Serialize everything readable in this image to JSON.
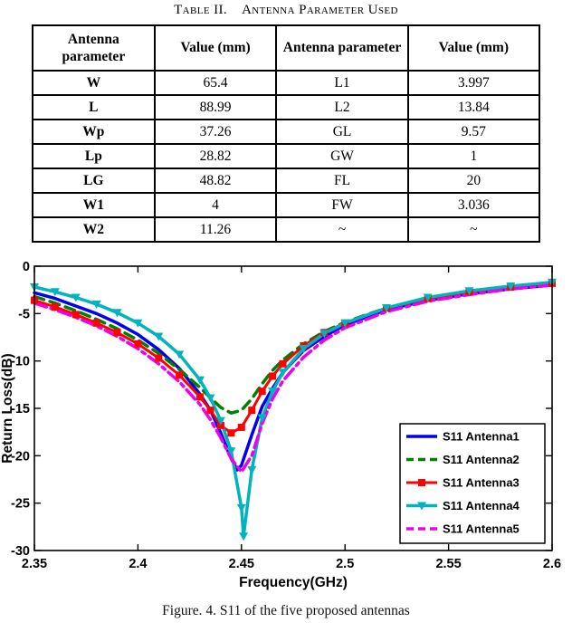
{
  "table": {
    "title_prefix": "Table II.",
    "title_text": "Antenna Parameter Used",
    "headers": [
      "Antenna parameter",
      "Value (mm)",
      "Antenna parameter",
      "Value (mm)"
    ],
    "rows": [
      [
        "W",
        "65.4",
        "L1",
        "3.997"
      ],
      [
        "L",
        "88.99",
        "L2",
        "13.84"
      ],
      [
        "Wp",
        "37.26",
        "GL",
        "9.57"
      ],
      [
        "Lp",
        "28.82",
        "GW",
        "1"
      ],
      [
        "LG",
        "48.82",
        "FL",
        "20"
      ],
      [
        "W1",
        "4",
        "FW",
        "3.036"
      ],
      [
        "W2",
        "11.26",
        "~",
        "~"
      ]
    ]
  },
  "figure": {
    "caption": "Figure. 4. S11 of the five proposed antennas"
  },
  "chart_data": {
    "type": "line",
    "title": "",
    "xlabel": "Frequency(GHz)",
    "ylabel": "Return Loss(dB)",
    "xlim": [
      2.35,
      2.6
    ],
    "ylim": [
      -30,
      0
    ],
    "xticks": [
      2.35,
      2.4,
      2.45,
      2.5,
      2.55,
      2.6
    ],
    "xtick_labels": [
      "2.35",
      "2.4",
      "2.45",
      "2.5",
      "2.55",
      "2.6"
    ],
    "yticks": [
      0,
      -5,
      -10,
      -15,
      -20,
      -25,
      -30
    ],
    "ytick_labels": [
      "0",
      "-5",
      "-10",
      "-15",
      "-20",
      "-25",
      "-30"
    ],
    "grid": false,
    "legend_position": "lower right",
    "axis_color": "#000000",
    "series": [
      {
        "name": "S11 Antenna1",
        "color": "#0000EE",
        "style": "solid",
        "marker": "none",
        "width": 3.5,
        "x": [
          2.35,
          2.36,
          2.37,
          2.38,
          2.39,
          2.4,
          2.41,
          2.42,
          2.43,
          2.435,
          2.44,
          2.445,
          2.448,
          2.45,
          2.455,
          2.46,
          2.465,
          2.47,
          2.48,
          2.49,
          2.5,
          2.52,
          2.54,
          2.56,
          2.58,
          2.6
        ],
        "y": [
          -2.8,
          -3.4,
          -4.2,
          -5.0,
          -6.0,
          -7.2,
          -8.8,
          -10.8,
          -13.5,
          -15.2,
          -17.6,
          -20.3,
          -21.5,
          -21.0,
          -17.8,
          -14.8,
          -12.9,
          -11.2,
          -8.9,
          -7.4,
          -6.2,
          -4.6,
          -3.6,
          -2.9,
          -2.4,
          -2.0
        ]
      },
      {
        "name": "S11 Antenna2",
        "color": "#007F00",
        "style": "dashed",
        "marker": "none",
        "width": 3.5,
        "x": [
          2.35,
          2.36,
          2.37,
          2.38,
          2.39,
          2.4,
          2.41,
          2.42,
          2.43,
          2.435,
          2.44,
          2.445,
          2.45,
          2.455,
          2.46,
          2.465,
          2.47,
          2.48,
          2.49,
          2.5,
          2.52,
          2.54,
          2.56,
          2.58,
          2.6
        ],
        "y": [
          -3.2,
          -3.9,
          -4.7,
          -5.6,
          -6.6,
          -7.8,
          -9.2,
          -10.9,
          -12.8,
          -13.9,
          -14.9,
          -15.5,
          -15.2,
          -14.0,
          -12.4,
          -11.0,
          -9.9,
          -8.2,
          -6.9,
          -5.9,
          -4.4,
          -3.4,
          -2.7,
          -2.2,
          -1.9
        ]
      },
      {
        "name": "S11 Antenna3",
        "color": "#FF0000",
        "style": "solid",
        "marker": "square",
        "width": 3,
        "x": [
          2.35,
          2.36,
          2.37,
          2.38,
          2.39,
          2.4,
          2.41,
          2.42,
          2.43,
          2.435,
          2.44,
          2.445,
          2.45,
          2.455,
          2.46,
          2.465,
          2.47,
          2.48,
          2.49,
          2.5,
          2.52,
          2.54,
          2.56,
          2.58,
          2.6
        ],
        "y": [
          -3.6,
          -4.3,
          -5.1,
          -6.0,
          -7.0,
          -8.2,
          -9.7,
          -11.5,
          -13.8,
          -15.2,
          -16.8,
          -17.6,
          -17.0,
          -15.2,
          -13.2,
          -11.6,
          -10.3,
          -8.4,
          -7.0,
          -6.0,
          -4.4,
          -3.4,
          -2.7,
          -2.2,
          -1.8
        ]
      },
      {
        "name": "S11 Antenna4",
        "color": "#00B4BE",
        "style": "solid",
        "marker": "triangle-down",
        "width": 3.5,
        "x": [
          2.35,
          2.36,
          2.37,
          2.38,
          2.39,
          2.4,
          2.41,
          2.42,
          2.43,
          2.435,
          2.44,
          2.445,
          2.45,
          2.451,
          2.455,
          2.46,
          2.465,
          2.47,
          2.48,
          2.49,
          2.5,
          2.52,
          2.54,
          2.56,
          2.58,
          2.6
        ],
        "y": [
          -2.2,
          -2.7,
          -3.3,
          -4.0,
          -4.9,
          -6.0,
          -7.4,
          -9.3,
          -12.0,
          -13.9,
          -16.3,
          -19.5,
          -25.5,
          -28.5,
          -21.5,
          -16.0,
          -13.2,
          -11.2,
          -8.7,
          -7.1,
          -6.0,
          -4.4,
          -3.3,
          -2.6,
          -2.1,
          -1.7
        ]
      },
      {
        "name": "S11 Antenna5",
        "color": "#EE00EE",
        "style": "dashdot",
        "marker": "none",
        "width": 3.5,
        "x": [
          2.35,
          2.36,
          2.37,
          2.38,
          2.39,
          2.4,
          2.41,
          2.42,
          2.43,
          2.435,
          2.44,
          2.445,
          2.45,
          2.455,
          2.46,
          2.465,
          2.47,
          2.48,
          2.49,
          2.5,
          2.52,
          2.54,
          2.56,
          2.58,
          2.6
        ],
        "y": [
          -3.9,
          -4.6,
          -5.4,
          -6.3,
          -7.4,
          -8.7,
          -10.3,
          -12.2,
          -14.6,
          -16.2,
          -18.1,
          -20.3,
          -21.7,
          -20.0,
          -16.6,
          -14.0,
          -12.1,
          -9.6,
          -7.8,
          -6.5,
          -4.8,
          -3.7,
          -3.0,
          -2.4,
          -2.0
        ]
      }
    ]
  }
}
